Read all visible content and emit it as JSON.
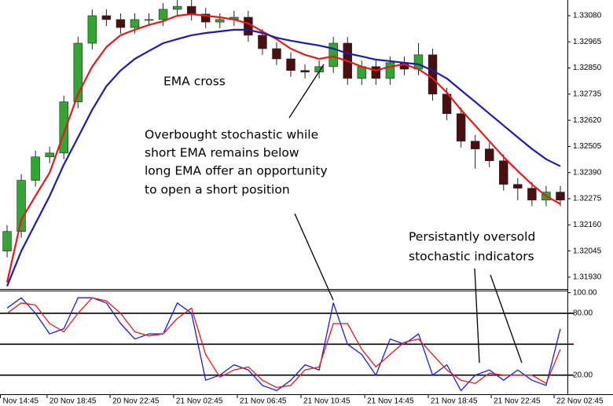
{
  "chart_data": [
    {
      "type": "candlestick",
      "xlim": [
        -0.5,
        39.5
      ],
      "ylim": [
        1.31878,
        1.33149
      ],
      "yticks": [
        {
          "value": 1.3308,
          "label": "1.33080"
        },
        {
          "value": 1.32965,
          "label": "1.32965"
        },
        {
          "value": 1.3285,
          "label": "1.32850"
        },
        {
          "value": 1.32735,
          "label": "1.32735"
        },
        {
          "value": 1.3262,
          "label": "1.32620"
        },
        {
          "value": 1.32505,
          "label": "1.32505"
        },
        {
          "value": 1.3239,
          "label": "1.32390"
        },
        {
          "value": 1.32275,
          "label": "1.32275"
        },
        {
          "value": 1.3216,
          "label": "1.32160"
        },
        {
          "value": 1.32045,
          "label": "1.32045"
        },
        {
          "value": 1.3193,
          "label": "1.31930"
        }
      ],
      "up_color": "#33a532",
      "down_color": "#4a1010",
      "open": [
        1.32045,
        1.32131,
        1.32356,
        1.32459,
        1.32476,
        1.32701,
        1.32959,
        1.3308,
        1.33063,
        1.33028,
        1.33063,
        1.33063,
        1.33108,
        1.33121,
        1.33087,
        1.33052,
        1.33063,
        1.33073,
        1.32994,
        1.32935,
        1.3289,
        1.32839,
        1.32832,
        1.32856,
        1.32959,
        1.32804,
        1.32856,
        1.32804,
        1.32873,
        1.32845,
        1.32908,
        1.32735,
        1.32649,
        1.32528,
        1.32494,
        1.32442,
        1.32338,
        1.32321,
        1.32269,
        1.32304
      ],
      "high": [
        1.32159,
        1.32383,
        1.32487,
        1.32504,
        1.32728,
        1.32987,
        1.33108,
        1.33108,
        1.3309,
        1.3309,
        1.3309,
        1.33135,
        1.33149,
        1.33149,
        1.33114,
        1.3309,
        1.33101,
        1.33101,
        1.33021,
        1.32963,
        1.32918,
        1.32866,
        1.32883,
        1.32987,
        1.32987,
        1.32883,
        1.32883,
        1.32901,
        1.32901,
        1.32959,
        1.32935,
        1.32763,
        1.32676,
        1.32556,
        1.32521,
        1.32469,
        1.32366,
        1.32349,
        1.32331,
        1.32331
      ],
      "low": [
        1.32017,
        1.32104,
        1.32328,
        1.32431,
        1.32449,
        1.32673,
        1.32932,
        1.33035,
        1.33001,
        1.33001,
        1.33035,
        1.33035,
        1.3308,
        1.33059,
        1.33025,
        1.33025,
        1.33035,
        1.32966,
        1.32908,
        1.32863,
        1.32811,
        1.32804,
        1.32804,
        1.32828,
        1.32776,
        1.32776,
        1.32776,
        1.32776,
        1.32818,
        1.32818,
        1.32707,
        1.32621,
        1.325,
        1.32407,
        1.32414,
        1.32311,
        1.32269,
        1.32242,
        1.32242,
        1.32242
      ],
      "close": [
        1.32131,
        1.32356,
        1.32459,
        1.32476,
        1.32701,
        1.32959,
        1.3308,
        1.33063,
        1.33028,
        1.33063,
        1.33063,
        1.33108,
        1.33121,
        1.33087,
        1.33052,
        1.33063,
        1.33073,
        1.32994,
        1.32935,
        1.3289,
        1.32839,
        1.32832,
        1.32856,
        1.32959,
        1.32804,
        1.32856,
        1.32804,
        1.32873,
        1.32845,
        1.32908,
        1.32735,
        1.32649,
        1.32528,
        1.32494,
        1.32442,
        1.32338,
        1.32321,
        1.32269,
        1.32304,
        1.32269
      ],
      "series": [
        {
          "color": "#e31a1a",
          "values": [
            1.31907,
            1.32183,
            1.32287,
            1.3239,
            1.32563,
            1.32735,
            1.32856,
            1.32942,
            1.32994,
            1.33018,
            1.33039,
            1.33056,
            1.3308,
            1.33087,
            1.3308,
            1.33073,
            1.33063,
            1.33046,
            1.33011,
            1.32977,
            1.32935,
            1.32908,
            1.3289,
            1.32901,
            1.3288,
            1.32856,
            1.32839,
            1.32856,
            1.32866,
            1.32845,
            1.32804,
            1.32742,
            1.32666,
            1.32597,
            1.32528,
            1.32459,
            1.32397,
            1.32338,
            1.32287,
            1.32252
          ]
        },
        {
          "color": "#1c1cb0",
          "values": [
            1.3189,
            1.32045,
            1.32166,
            1.32287,
            1.32425,
            1.32545,
            1.32666,
            1.3277,
            1.32839,
            1.3289,
            1.32925,
            1.32959,
            1.32977,
            1.32994,
            1.33004,
            1.33011,
            1.33018,
            1.33018,
            1.33004,
            1.32983,
            1.3297,
            1.32959,
            1.32949,
            1.32935,
            1.32914,
            1.32901,
            1.32887,
            1.3288,
            1.32873,
            1.32866,
            1.32839,
            1.32804,
            1.32752,
            1.32701,
            1.32649,
            1.32597,
            1.32545,
            1.32494,
            1.32449,
            1.32418
          ]
        }
      ],
      "annotations": [
        [
          "EMA cross"
        ],
        [
          "Overbought stochastic while",
          "short EMA remains below",
          "long EMA offer an opportunity",
          "to open a short position"
        ],
        [
          "Persistantly oversold",
          "stochastic indicators"
        ]
      ]
    },
    {
      "type": "line",
      "xlim": [
        -0.5,
        39.5
      ],
      "ylim": [
        3,
        102
      ],
      "yticks": [
        {
          "value": 100,
          "label": "100.00"
        },
        {
          "value": 80,
          "label": "80.00"
        },
        {
          "value": 20,
          "label": "20.00"
        }
      ],
      "levels": [
        80,
        50,
        20
      ],
      "xticks": [
        {
          "value": -0.5,
          "label": "Nov 14:45"
        },
        {
          "value": 2.82,
          "label": "20 Nov 18:45"
        },
        {
          "value": 7.26,
          "label": "20 Nov 22:45"
        },
        {
          "value": 11.74,
          "label": "21 Nov 02:45"
        },
        {
          "value": 16.23,
          "label": "21 Nov 06:45"
        },
        {
          "value": 20.72,
          "label": "21 Nov 10:45"
        },
        {
          "value": 25.21,
          "label": "21 Nov 14:45"
        },
        {
          "value": 29.69,
          "label": "21 Nov 18:45"
        },
        {
          "value": 34.13,
          "label": "21 Nov 22:45"
        },
        {
          "value": 38.56,
          "label": "22 Nov 02:45"
        }
      ],
      "series": [
        {
          "color": "#1c1cdc",
          "values": [
            85,
            95,
            80,
            60,
            65,
            95,
            95,
            90,
            70,
            55,
            60,
            60,
            90,
            80,
            15,
            20,
            30,
            25,
            10,
            5,
            15,
            30,
            25,
            90,
            50,
            40,
            20,
            55,
            50,
            60,
            20,
            30,
            5,
            20,
            25,
            15,
            25,
            15,
            10,
            65
          ]
        },
        {
          "color": "#e31a1a",
          "values": [
            80,
            90,
            88,
            70,
            62,
            80,
            95,
            92,
            80,
            62,
            58,
            60,
            75,
            85,
            40,
            18,
            25,
            28,
            15,
            8,
            10,
            25,
            28,
            70,
            70,
            45,
            28,
            40,
            52,
            55,
            40,
            25,
            15,
            12,
            22,
            20,
            20,
            20,
            12,
            45
          ]
        }
      ]
    }
  ]
}
